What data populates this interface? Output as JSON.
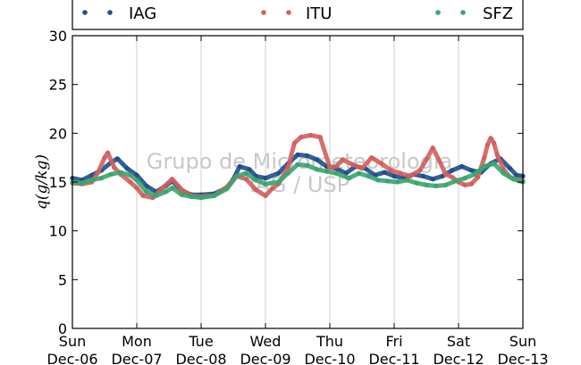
{
  "chart_data": {
    "type": "scatter",
    "ylabel": "q(g/kg)",
    "ylim": [
      0,
      30
    ],
    "yticks": [
      0,
      5,
      10,
      15,
      20,
      25,
      30
    ],
    "xlim": [
      0,
      7
    ],
    "xticks": [
      {
        "day": "Sun",
        "date": "Dec-06"
      },
      {
        "day": "Mon",
        "date": "Dec-07"
      },
      {
        "day": "Tue",
        "date": "Dec-08"
      },
      {
        "day": "Wed",
        "date": "Dec-09"
      },
      {
        "day": "Thu",
        "date": "Dec-10"
      },
      {
        "day": "Fri",
        "date": "Dec-11"
      },
      {
        "day": "Sat",
        "date": "Dec-12"
      },
      {
        "day": "Sun",
        "date": "Dec-13"
      }
    ],
    "grid": "vertical",
    "legend": "top",
    "watermark": [
      "Grupo de Micrometeorologia",
      "IAG / USP"
    ],
    "series": [
      {
        "name": "IAG",
        "color": "#1f4e8c",
        "x": [
          0,
          0.15,
          0.3,
          0.45,
          0.6,
          0.7,
          0.85,
          1.0,
          1.15,
          1.3,
          1.45,
          1.55,
          1.7,
          1.85,
          2.0,
          2.2,
          2.4,
          2.5,
          2.6,
          2.75,
          2.85,
          3.0,
          3.2,
          3.35,
          3.5,
          3.65,
          3.8,
          3.95,
          4.1,
          4.25,
          4.4,
          4.55,
          4.7,
          4.85,
          5.0,
          5.15,
          5.3,
          5.45,
          5.6,
          5.75,
          5.9,
          6.05,
          6.2,
          6.35,
          6.5,
          6.65,
          6.8,
          6.9,
          7.0
        ],
        "y": [
          15.4,
          15.2,
          15.7,
          16.2,
          17.0,
          17.4,
          16.4,
          15.7,
          14.6,
          14.0,
          14.6,
          15.1,
          14.1,
          13.7,
          13.7,
          13.8,
          14.4,
          15.3,
          16.6,
          16.3,
          15.6,
          15.4,
          15.9,
          16.9,
          17.8,
          17.7,
          17.3,
          16.6,
          16.4,
          15.9,
          16.6,
          16.4,
          15.7,
          16.0,
          15.6,
          15.4,
          15.8,
          15.6,
          15.3,
          15.6,
          16.2,
          16.6,
          16.2,
          16.0,
          16.9,
          17.4,
          16.4,
          15.7,
          15.6
        ]
      },
      {
        "name": "ITU",
        "color": "#d1605e",
        "x": [
          0,
          0.15,
          0.3,
          0.4,
          0.5,
          0.55,
          0.65,
          0.75,
          0.9,
          1.0,
          1.1,
          1.25,
          1.4,
          1.55,
          1.7,
          1.85,
          2.0,
          2.2,
          2.4,
          2.55,
          2.7,
          2.85,
          3.0,
          3.1,
          3.2,
          3.35,
          3.45,
          3.55,
          3.7,
          3.85,
          4.0,
          4.1,
          4.2,
          4.35,
          4.5,
          4.65,
          4.8,
          4.95,
          5.1,
          5.25,
          5.4,
          5.5,
          5.6,
          5.7,
          5.8,
          5.9,
          6.0,
          6.1,
          6.2,
          6.3,
          6.4,
          6.45,
          6.5,
          6.55,
          6.6,
          6.7,
          6.8,
          7.0
        ],
        "y": [
          14.9,
          14.8,
          15.0,
          16.0,
          17.5,
          18.0,
          16.5,
          15.8,
          15.0,
          14.4,
          13.6,
          13.4,
          14.4,
          15.3,
          14.2,
          13.6,
          13.5,
          13.6,
          14.5,
          15.6,
          15.3,
          14.2,
          13.6,
          14.3,
          14.8,
          16.5,
          19.0,
          19.6,
          19.8,
          19.6,
          16.5,
          16.6,
          17.3,
          16.8,
          16.4,
          17.5,
          16.9,
          16.2,
          15.9,
          15.6,
          16.2,
          17.3,
          18.5,
          17.2,
          15.8,
          15.5,
          15.0,
          14.7,
          14.8,
          15.5,
          17.5,
          18.8,
          19.5,
          19.0,
          17.8,
          16.3,
          15.5,
          15.1
        ]
      },
      {
        "name": "SFZ",
        "color": "#3aa56e",
        "x": [
          0,
          0.15,
          0.3,
          0.45,
          0.6,
          0.75,
          0.9,
          1.0,
          1.15,
          1.3,
          1.45,
          1.55,
          1.7,
          1.85,
          2.0,
          2.2,
          2.4,
          2.55,
          2.7,
          2.85,
          3.0,
          3.2,
          3.35,
          3.5,
          3.65,
          3.8,
          3.95,
          4.1,
          4.3,
          4.45,
          4.6,
          4.75,
          4.9,
          5.05,
          5.2,
          5.35,
          5.5,
          5.65,
          5.8,
          5.95,
          6.1,
          6.25,
          6.4,
          6.55,
          6.7,
          6.85,
          7.0
        ],
        "y": [
          15.0,
          14.9,
          15.2,
          15.4,
          15.8,
          16.0,
          15.7,
          15.2,
          14.0,
          13.6,
          14.0,
          14.4,
          13.7,
          13.5,
          13.4,
          13.6,
          14.3,
          15.6,
          15.9,
          15.2,
          14.8,
          15.0,
          15.9,
          16.8,
          16.7,
          16.3,
          16.1,
          15.9,
          15.4,
          15.9,
          15.6,
          15.2,
          15.1,
          15.0,
          15.2,
          14.9,
          14.7,
          14.6,
          14.7,
          15.1,
          15.4,
          15.8,
          16.6,
          16.9,
          15.9,
          15.3,
          15.0
        ]
      }
    ]
  }
}
